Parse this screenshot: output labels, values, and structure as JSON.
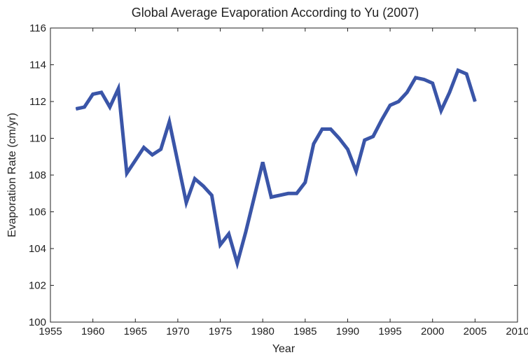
{
  "chart_data": {
    "type": "line",
    "title": "Global Average Evaporation According to Yu (2007)",
    "xlabel": "Year",
    "ylabel": "Evaporation Rate (cm/yr)",
    "xlim": [
      1955,
      2010
    ],
    "ylim": [
      100,
      116
    ],
    "xticks": [
      1955,
      1960,
      1965,
      1970,
      1975,
      1980,
      1985,
      1990,
      1995,
      2000,
      2005,
      2010
    ],
    "yticks": [
      100,
      102,
      104,
      106,
      108,
      110,
      112,
      114,
      116
    ],
    "grid": false,
    "line_color": "#3a55a8",
    "series": [
      {
        "x": [
          1958,
          1959,
          1960,
          1961,
          1962,
          1963,
          1964,
          1965,
          1966,
          1967,
          1968,
          1969,
          1970,
          1971,
          1972,
          1973,
          1974,
          1975,
          1976,
          1977,
          1978,
          1979,
          1980,
          1981,
          1982,
          1983,
          1984,
          1985,
          1986,
          1987,
          1988,
          1989,
          1990,
          1991,
          1992,
          1993,
          1994,
          1995,
          1996,
          1997,
          1998,
          1999,
          2000,
          2001,
          2002,
          2003,
          2004,
          2005
        ],
        "values": [
          111.6,
          111.7,
          112.4,
          112.5,
          111.7,
          112.7,
          108.1,
          108.8,
          109.5,
          109.1,
          109.4,
          110.9,
          108.7,
          106.5,
          107.8,
          107.4,
          106.9,
          104.2,
          104.8,
          103.2,
          104.9,
          106.8,
          108.7,
          106.8,
          106.9,
          107.0,
          107.0,
          107.6,
          109.7,
          110.5,
          110.5,
          110.0,
          109.4,
          108.2,
          109.9,
          110.1,
          111.0,
          111.8,
          112.0,
          112.5,
          113.3,
          113.2,
          113.0,
          111.5,
          112.5,
          113.7,
          113.5,
          112.0
        ]
      }
    ]
  }
}
